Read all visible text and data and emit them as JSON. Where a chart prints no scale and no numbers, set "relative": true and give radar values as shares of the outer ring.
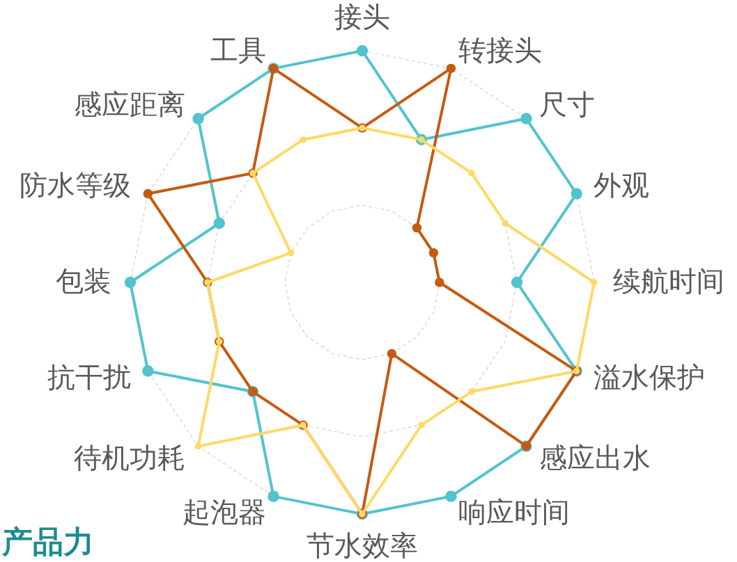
{
  "chart_data": {
    "type": "radar",
    "title": "产品力",
    "relative": true,
    "grid": true,
    "marker": "circle",
    "categories": [
      "接头",
      "转接头",
      "尺寸",
      "外观",
      "续航时间",
      "溢水保护",
      "感应出水",
      "响应时间",
      "节水效率",
      "起泡器",
      "待机功耗",
      "抗干扰",
      "包装",
      "防水等级",
      "感应距离",
      "工具"
    ],
    "series": [
      {
        "color": "#52c3cf",
        "values": [
          1,
          0.667,
          1,
          1,
          0.667,
          1,
          1,
          1,
          1,
          1,
          0.667,
          1,
          1,
          0.667,
          1,
          1
        ]
      },
      {
        "color": "#c55a11",
        "values": [
          0.667,
          1,
          0.333,
          0.333,
          0.333,
          1,
          1,
          0.333,
          1,
          0.667,
          0.667,
          0.667,
          0.667,
          1,
          0.667,
          1
        ]
      },
      {
        "color": "#ffd966",
        "values": [
          0.667,
          0.667,
          0.667,
          0.667,
          1,
          1,
          0.667,
          0.667,
          1,
          0.667,
          1,
          0.667,
          0.667,
          0.333,
          0.667,
          0.667
        ]
      }
    ]
  }
}
